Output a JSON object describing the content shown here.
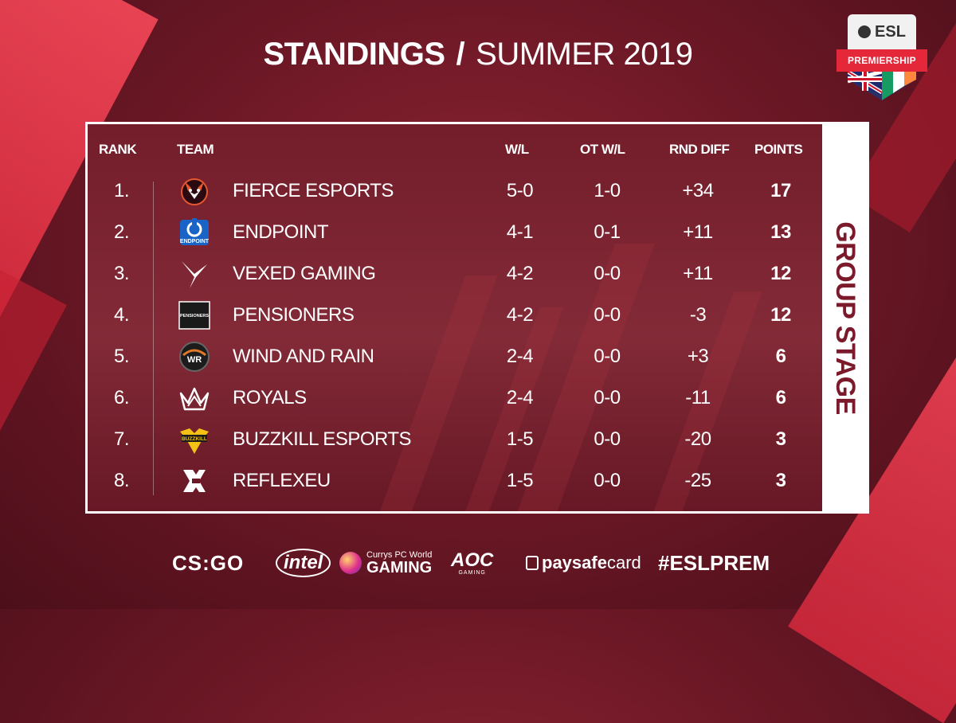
{
  "header": {
    "title_bold": "STANDINGS",
    "separator": "/",
    "title_light": "SUMMER 2019"
  },
  "badge": {
    "logo": "ESL",
    "banner": "PREMIERSHIP"
  },
  "side_label": "GROUP STAGE",
  "columns": {
    "rank": "RANK",
    "team": "TEAM",
    "wl": "W/L",
    "ot": "OT W/L",
    "diff": "RND DIFF",
    "points": "POINTS"
  },
  "rows": [
    {
      "rank": "1.",
      "team": "FIERCE ESPORTS",
      "logo": "fierce-esports-logo",
      "wl": "5-0",
      "ot": "1-0",
      "diff": "+34",
      "points": "17"
    },
    {
      "rank": "2.",
      "team": "ENDPOINT",
      "logo": "endpoint-logo",
      "wl": "4-1",
      "ot": "0-1",
      "diff": "+11",
      "points": "13"
    },
    {
      "rank": "3.",
      "team": "VEXED GAMING",
      "logo": "vexed-gaming-logo",
      "wl": "4-2",
      "ot": "0-0",
      "diff": "+11",
      "points": "12"
    },
    {
      "rank": "4.",
      "team": "PENSIONERS",
      "logo": "pensioners-logo",
      "wl": "4-2",
      "ot": "0-0",
      "diff": "-3",
      "points": "12"
    },
    {
      "rank": "5.",
      "team": "WIND AND RAIN",
      "logo": "wind-and-rain-logo",
      "wl": "2-4",
      "ot": "0-0",
      "diff": "+3",
      "points": "6"
    },
    {
      "rank": "6.",
      "team": "ROYALS",
      "logo": "royals-logo",
      "wl": "2-4",
      "ot": "0-0",
      "diff": "-11",
      "points": "6"
    },
    {
      "rank": "7.",
      "team": "BUZZKILL ESPORTS",
      "logo": "buzzkill-esports-logo",
      "wl": "1-5",
      "ot": "0-0",
      "diff": "-20",
      "points": "3"
    },
    {
      "rank": "8.",
      "team": "REFLEXEU",
      "logo": "reflexeu-logo",
      "wl": "1-5",
      "ot": "0-0",
      "diff": "-25",
      "points": "3"
    }
  ],
  "logo_text": {
    "endpoint": "ENDPOINT",
    "pensioners": "PENSIONERS",
    "wind_and_rain": "WR",
    "buzzkill": "BUZZKILL"
  },
  "sponsors": {
    "csgo": "CS:GO",
    "intel": "intel",
    "currys_small": "Currys PC World",
    "currys_big": "GAMING",
    "aoc_big": "AOC",
    "aoc_small": "GAMING",
    "paysafe_a": "paysafe",
    "paysafe_b": "card",
    "hashtag": "#ESLPREM"
  },
  "colors": {
    "background": "#6e1826",
    "accent_red": "#e4283a",
    "frame": "#ffffff",
    "side_label_text": "#7a1a2a"
  }
}
